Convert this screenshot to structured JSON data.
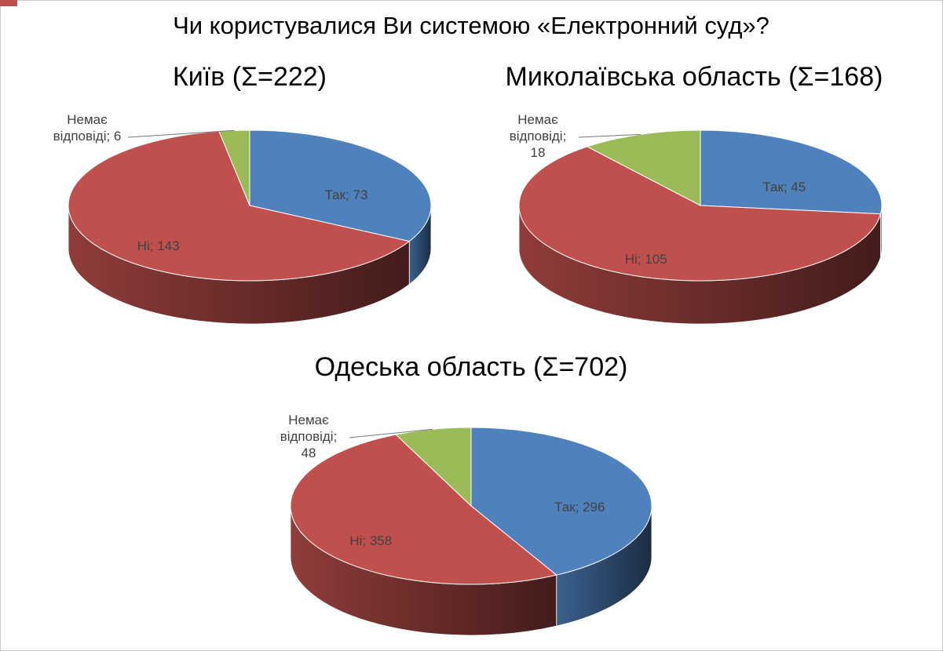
{
  "title": "Чи користувалися Ви системою «Електронний суд»?",
  "chart_data": [
    {
      "type": "pie3d",
      "title": "Київ (Σ=222)",
      "values": [
        73,
        143,
        6
      ],
      "value_labels": [
        "Так; 73",
        "Ні; 143",
        "Немає відповіді; 6"
      ],
      "colors": [
        "#4f81bd",
        "#c0504d",
        "#9bbb59"
      ]
    },
    {
      "type": "pie3d",
      "title": "Миколаївська область (Σ=168)",
      "values": [
        45,
        105,
        18
      ],
      "value_labels": [
        "Так; 45",
        "Ні; 105",
        "Немає відповіді; 18"
      ],
      "colors": [
        "#4f81bd",
        "#c0504d",
        "#9bbb59"
      ]
    },
    {
      "type": "pie3d",
      "title": "Одеська область (Σ=702)",
      "values": [
        296,
        358,
        48
      ],
      "value_labels": [
        "Так; 296",
        "Ні; 358",
        "Немає відповіді; 48"
      ],
      "colors": [
        "#4f81bd",
        "#c0504d",
        "#9bbb59"
      ]
    }
  ]
}
